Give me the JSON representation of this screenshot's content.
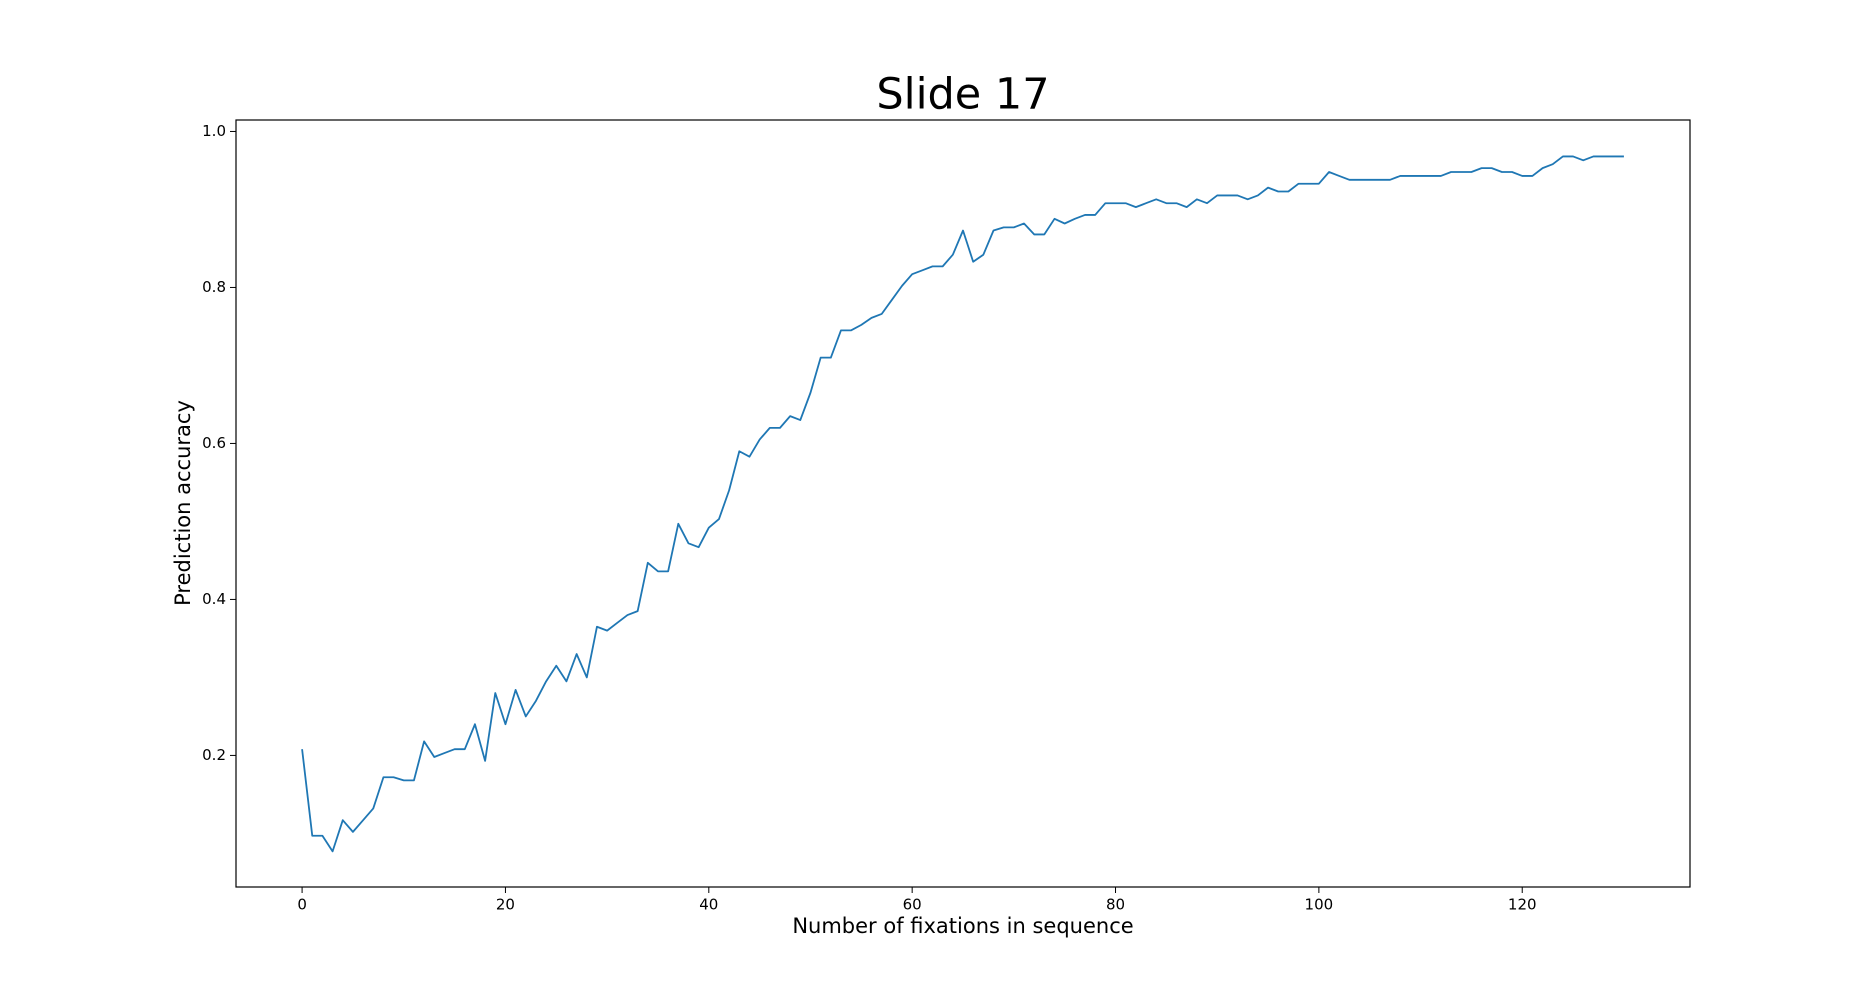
{
  "chart_data": {
    "type": "line",
    "title": "Slide 17",
    "xlabel": "Number of fixations in sequence",
    "ylabel": "Prediction accuracy",
    "x": [
      0,
      1,
      2,
      3,
      4,
      5,
      6,
      7,
      8,
      9,
      10,
      11,
      12,
      13,
      14,
      15,
      16,
      17,
      18,
      19,
      20,
      21,
      22,
      23,
      24,
      25,
      26,
      27,
      28,
      29,
      30,
      31,
      32,
      33,
      34,
      35,
      36,
      37,
      38,
      39,
      40,
      41,
      42,
      43,
      44,
      45,
      46,
      47,
      48,
      49,
      50,
      51,
      52,
      53,
      54,
      55,
      56,
      57,
      58,
      59,
      60,
      61,
      62,
      63,
      64,
      65,
      66,
      67,
      68,
      69,
      70,
      71,
      72,
      73,
      74,
      75,
      76,
      77,
      78,
      79,
      80,
      81,
      82,
      83,
      84,
      85,
      86,
      87,
      88,
      89,
      90,
      91,
      92,
      93,
      94,
      95,
      96,
      97,
      98,
      99,
      100,
      101,
      102,
      103,
      104,
      105,
      106,
      107,
      108,
      109,
      110,
      111,
      112,
      113,
      114,
      115,
      116,
      117,
      118,
      119,
      120,
      121,
      122,
      123,
      124,
      125,
      126,
      127,
      128,
      129,
      130
    ],
    "series": [
      {
        "color": "#1f77b4",
        "values": [
          0.208,
          0.097,
          0.097,
          0.077,
          0.117,
          0.102,
          0.117,
          0.132,
          0.172,
          0.172,
          0.168,
          0.168,
          0.218,
          0.198,
          0.203,
          0.208,
          0.208,
          0.24,
          0.193,
          0.28,
          0.24,
          0.284,
          0.25,
          0.27,
          0.295,
          0.315,
          0.295,
          0.33,
          0.3,
          0.365,
          0.36,
          0.37,
          0.38,
          0.385,
          0.447,
          0.436,
          0.436,
          0.497,
          0.472,
          0.467,
          0.492,
          0.503,
          0.54,
          0.59,
          0.583,
          0.605,
          0.62,
          0.62,
          0.635,
          0.63,
          0.665,
          0.71,
          0.71,
          0.745,
          0.745,
          0.752,
          0.761,
          0.766,
          0.784,
          0.802,
          0.817,
          0.822,
          0.827,
          0.827,
          0.842,
          0.873,
          0.833,
          0.842,
          0.873,
          0.877,
          0.877,
          0.882,
          0.868,
          0.868,
          0.888,
          0.882,
          0.888,
          0.893,
          0.893,
          0.908,
          0.908,
          0.908,
          0.903,
          0.908,
          0.913,
          0.908,
          0.908,
          0.903,
          0.913,
          0.908,
          0.918,
          0.918,
          0.918,
          0.913,
          0.918,
          0.928,
          0.923,
          0.923,
          0.933,
          0.933,
          0.933,
          0.948,
          0.943,
          0.938,
          0.938,
          0.938,
          0.938,
          0.938,
          0.943,
          0.943,
          0.943,
          0.943,
          0.943,
          0.948,
          0.948,
          0.948,
          0.953,
          0.953,
          0.948,
          0.948,
          0.943,
          0.943,
          0.953,
          0.958,
          0.968,
          0.968,
          0.963,
          0.968,
          0.968,
          0.968,
          0.968
        ]
      }
    ],
    "xlim": [
      -6.5,
      136.5
    ],
    "xticks": [
      0,
      20,
      40,
      60,
      80,
      100,
      120
    ],
    "ylim": [
      0.0313,
      1.0147
    ],
    "yticks": [
      0.2,
      0.4,
      0.6,
      0.8,
      {
        "value": 1,
        "label": "1.0"
      }
    ]
  }
}
